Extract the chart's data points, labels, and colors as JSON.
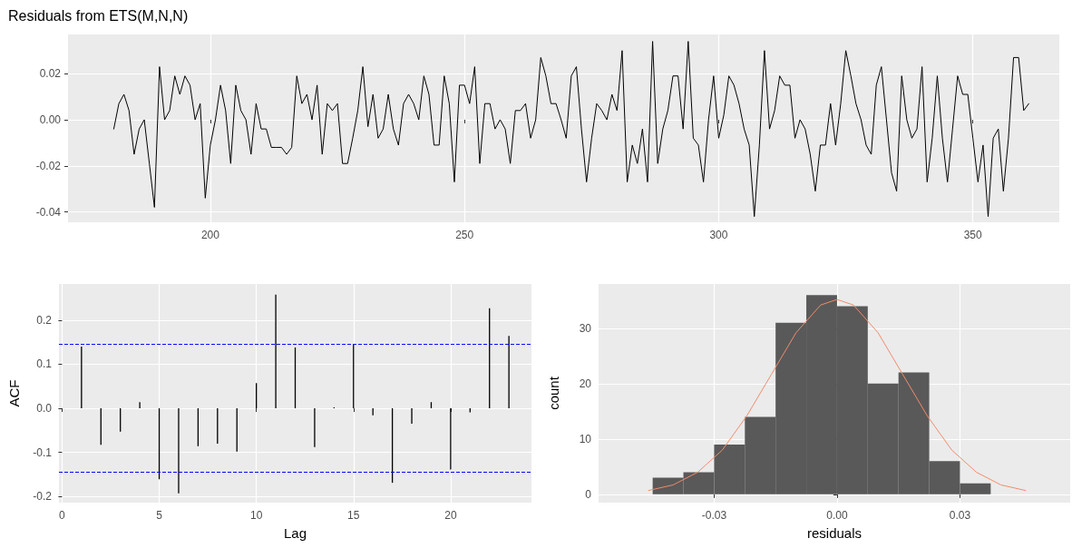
{
  "chart_data": [
    {
      "type": "line",
      "title": "Residuals from ETS(M,N,N)",
      "color": "#000000",
      "grid": true,
      "x": [
        181,
        182,
        183,
        184,
        185,
        186,
        187,
        188,
        189,
        190,
        191,
        192,
        193,
        194,
        195,
        196,
        197,
        198,
        199,
        200,
        201,
        202,
        203,
        204,
        205,
        206,
        207,
        208,
        209,
        210,
        211,
        212,
        213,
        214,
        215,
        216,
        217,
        218,
        219,
        220,
        221,
        222,
        223,
        224,
        225,
        226,
        227,
        228,
        229,
        230,
        231,
        232,
        233,
        234,
        235,
        236,
        237,
        238,
        239,
        240,
        241,
        242,
        243,
        244,
        245,
        246,
        247,
        248,
        249,
        250,
        251,
        252,
        253,
        254,
        255,
        256,
        257,
        258,
        259,
        260,
        261,
        262,
        263,
        264,
        265,
        266,
        267,
        268,
        269,
        270,
        271,
        272,
        273,
        274,
        275,
        276,
        277,
        278,
        279,
        280,
        281,
        282,
        283,
        284,
        285,
        286,
        287,
        288,
        289,
        290,
        291,
        292,
        293,
        294,
        295,
        296,
        297,
        298,
        299,
        300,
        301,
        302,
        303,
        304,
        305,
        306,
        307,
        308,
        309,
        310,
        311,
        312,
        313,
        314,
        315,
        316,
        317,
        318,
        319,
        320,
        321,
        322,
        323,
        324,
        325,
        326,
        327,
        328,
        329,
        330,
        331,
        332,
        333,
        334,
        335,
        336,
        337,
        338,
        339,
        340,
        341,
        342,
        343,
        344,
        345,
        346,
        347,
        348,
        349,
        350,
        351,
        352,
        353,
        354,
        355,
        356,
        357,
        358,
        359,
        360,
        361
      ],
      "values": [
        -0.004,
        0.007,
        0.011,
        0.004,
        -0.015,
        -0.004,
        0,
        -0.019,
        -0.038,
        0.023,
        0,
        0.004,
        0.019,
        0.011,
        0.019,
        0.015,
        0,
        0.007,
        -0.034,
        -0.011,
        0,
        0.015,
        0.004,
        -0.019,
        0.015,
        0.004,
        0,
        -0.015,
        0.007,
        -0.004,
        -0.004,
        -0.012,
        -0.012,
        -0.012,
        -0.015,
        -0.012,
        0.019,
        0.007,
        0.011,
        0,
        0.015,
        -0.015,
        0.007,
        0.004,
        0.007,
        -0.019,
        -0.019,
        -0.008,
        0.004,
        0.023,
        -0.003,
        0.011,
        -0.008,
        -0.004,
        0.011,
        -0.004,
        -0.011,
        0.007,
        0.011,
        0.007,
        0,
        0.019,
        0.011,
        -0.011,
        -0.011,
        0.019,
        0.007,
        -0.027,
        0.015,
        0.015,
        0.007,
        0.023,
        -0.019,
        0.007,
        0.007,
        -0.004,
        0,
        -0.004,
        -0.019,
        0.004,
        0.004,
        0.007,
        -0.008,
        0,
        0.027,
        0.019,
        0.007,
        0.007,
        0,
        -0.008,
        0.019,
        0.023,
        -0.004,
        -0.027,
        -0.008,
        0.007,
        0.004,
        0,
        0.011,
        0.004,
        0.03,
        -0.027,
        -0.011,
        -0.019,
        -0.004,
        -0.027,
        0.034,
        -0.019,
        -0.004,
        0.004,
        0.019,
        0.019,
        -0.004,
        0.034,
        -0.008,
        -0.011,
        -0.027,
        0,
        0.019,
        -0.008,
        0.002,
        0.019,
        0.015,
        0.007,
        -0.004,
        -0.011,
        -0.042,
        -0.011,
        0.03,
        -0.004,
        0.004,
        0.019,
        0.015,
        0.015,
        -0.008,
        0,
        -0.004,
        -0.015,
        -0.031,
        -0.011,
        -0.011,
        0.007,
        -0.011,
        0.007,
        0.03,
        0.019,
        0.007,
        0,
        -0.011,
        -0.015,
        0.015,
        0.023,
        0,
        -0.023,
        -0.031,
        0.019,
        0,
        -0.008,
        -0.004,
        0.023,
        -0.027,
        -0.008,
        0.019,
        -0.008,
        -0.027,
        -0.004,
        0.019,
        0.011,
        0.011,
        -0.008,
        -0.027,
        -0.011,
        -0.042,
        -0.008,
        -0.004,
        -0.031,
        -0.008,
        0.027,
        0.027,
        0.004,
        0.007
      ],
      "xlim": [
        172,
        367
      ],
      "xticks": [
        200,
        250,
        300,
        350
      ],
      "ylim": [
        -0.0445,
        0.037
      ],
      "yticks": [
        {
          "value": -0.04,
          "label": "-0.04"
        },
        {
          "value": -0.02,
          "label": "-0.02"
        },
        {
          "value": 0,
          "label": "0.00"
        },
        {
          "value": 0.02,
          "label": "0.02"
        }
      ]
    },
    {
      "type": "bar",
      "xlabel": "Lag",
      "ylabel": "ACF",
      "color": "#000000",
      "grid": true,
      "x": [
        1,
        2,
        3,
        4,
        5,
        6,
        7,
        8,
        9,
        10,
        11,
        12,
        13,
        14,
        15,
        16,
        17,
        18,
        19,
        20,
        21,
        22,
        23
      ],
      "values": [
        0.14,
        -0.083,
        -0.053,
        0.014,
        -0.161,
        -0.193,
        -0.086,
        -0.08,
        -0.098,
        0.057,
        0.258,
        0.138,
        -0.088,
        0.002,
        0.144,
        -0.016,
        -0.169,
        -0.035,
        0.014,
        -0.139,
        -0.009,
        0.227,
        0.164
      ],
      "ref_lines": [
        {
          "axis": "y",
          "value": 0.145,
          "color": "#0000ff",
          "line_style": "dashed"
        },
        {
          "axis": "y",
          "value": -0.145,
          "color": "#0000ff",
          "line_style": "dashed"
        }
      ],
      "xlim": [
        -0.16,
        24.16
      ],
      "xticks": [
        0,
        5,
        10,
        15,
        20
      ],
      "ylim": [
        -0.214,
        0.282
      ],
      "yticks": [
        {
          "value": -0.2,
          "label": "-0.2"
        },
        {
          "value": -0.1,
          "label": "-0.1"
        },
        {
          "value": 0,
          "label": "0.0"
        },
        {
          "value": 0.1,
          "label": "0.1"
        },
        {
          "value": 0.2,
          "label": "0.2"
        }
      ]
    },
    {
      "type": "histogram",
      "xlabel": "residuals",
      "ylabel": "count",
      "grid": true,
      "series": [
        {
          "type": "histogram",
          "color": "#595959",
          "bins": [
            -0.045,
            -0.0375,
            -0.03,
            -0.0225,
            -0.015,
            -0.0075,
            0,
            0.0075,
            0.015,
            0.0225,
            0.03,
            0.0375
          ],
          "values": [
            3,
            4,
            9,
            14,
            31,
            36,
            34,
            20,
            22,
            6,
            2
          ]
        },
        {
          "type": "line",
          "color": "#f08c6c",
          "x": [
            -0.046,
            -0.04,
            -0.034,
            -0.028,
            -0.022,
            -0.016,
            -0.01,
            -0.004,
            0,
            0.004,
            0.01,
            0.016,
            0.022,
            0.028,
            0.034,
            0.04,
            0.046
          ],
          "values": [
            0.7,
            1.7,
            4,
            8,
            14.2,
            21.7,
            29.2,
            34.2,
            35.2,
            34.2,
            29.2,
            21.7,
            14.2,
            8,
            4,
            1.7,
            0.7
          ]
        }
      ],
      "xlim": [
        -0.0582,
        0.0569
      ],
      "xticks": [
        {
          "value": -0.03,
          "label": "-0.03"
        },
        {
          "value": 0,
          "label": "0.00"
        },
        {
          "value": 0.03,
          "label": "0.03"
        }
      ],
      "ylim": [
        -1.5,
        38
      ],
      "yticks": [
        0,
        10,
        20,
        30
      ]
    }
  ]
}
